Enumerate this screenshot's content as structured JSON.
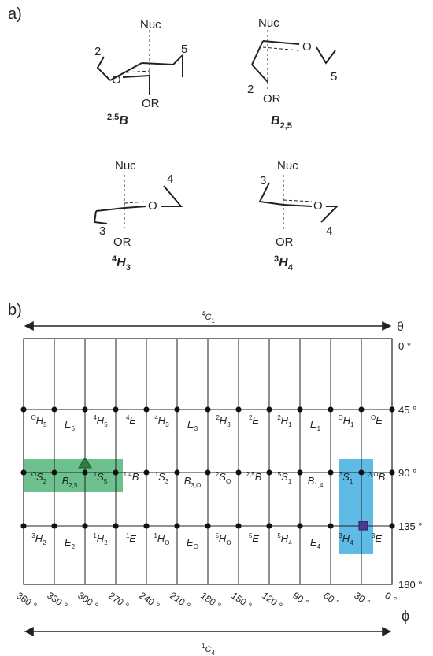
{
  "panel_a": {
    "label": "a)",
    "structures": [
      {
        "id": "25B",
        "sup": "2,5",
        "letter": "B",
        "sub": "",
        "atoms": {
          "top": "Nuc",
          "bottom": "OR",
          "c_left": "2",
          "c_right": "5",
          "ring_o": "O"
        }
      },
      {
        "id": "B25",
        "sup": "",
        "letter": "B",
        "sub": "2,5",
        "atoms": {
          "top": "Nuc",
          "bottom": "OR",
          "c_left": "2",
          "c_right": "5",
          "ring_o": "O"
        }
      },
      {
        "id": "4H3",
        "sup": "4",
        "letter": "H",
        "sub": "3",
        "atoms": {
          "top": "Nuc",
          "bottom": "OR",
          "c_left": "3",
          "c_right": "4",
          "ring_o": "O"
        }
      },
      {
        "id": "3H4",
        "sup": "3",
        "letter": "H",
        "sub": "4",
        "atoms": {
          "top": "Nuc",
          "bottom": "OR",
          "c_left": "3",
          "c_right": "4",
          "ring_o": "O"
        }
      }
    ]
  },
  "panel_b": {
    "label": "b)",
    "top_arrow_label": {
      "sup": "4",
      "main": "C",
      "sub": "1"
    },
    "bottom_arrow_label": {
      "sup": "1",
      "main": "C",
      "sub": "4"
    },
    "theta_symbol": "θ",
    "phi_symbol": "ϕ",
    "theta_ticks": [
      "0 °",
      "45 °",
      "90 °",
      "135 °",
      "180 °"
    ],
    "phi_ticks": [
      "360 °",
      "330 °",
      "300 °",
      "270 °",
      "240 °",
      "210 °",
      "180 °",
      "150 °",
      "120 °",
      "90 °",
      "60 °",
      "30 °",
      "0 °"
    ],
    "rows": [
      [
        {
          "sup": "O",
          "main": "H",
          "sub": "5"
        },
        {
          "sup": "",
          "main": "E",
          "sub": "5"
        },
        {
          "sup": "4",
          "main": "H",
          "sub": "5"
        },
        {
          "sup": "4",
          "main": "E",
          "sub": ""
        },
        {
          "sup": "4",
          "main": "H",
          "sub": "3"
        },
        {
          "sup": "",
          "main": "E",
          "sub": "3"
        },
        {
          "sup": "2",
          "main": "H",
          "sub": "3"
        },
        {
          "sup": "2",
          "main": "E",
          "sub": ""
        },
        {
          "sup": "2",
          "main": "H",
          "sub": "1"
        },
        {
          "sup": "",
          "main": "E",
          "sub": "1"
        },
        {
          "sup": "O",
          "main": "H",
          "sub": "1"
        },
        {
          "sup": "O",
          "main": "E",
          "sub": ""
        }
      ],
      [
        {
          "sup": "O",
          "main": "S",
          "sub": "2"
        },
        {
          "sup": "",
          "main": "B",
          "sub": "2,5"
        },
        {
          "sup": "1",
          "main": "S",
          "sub": "5"
        },
        {
          "sup": "1,4",
          "main": "B",
          "sub": ""
        },
        {
          "sup": "1",
          "main": "S",
          "sub": "3"
        },
        {
          "sup": "",
          "main": "B",
          "sub": "3,O"
        },
        {
          "sup": "2",
          "main": "S",
          "sub": "O"
        },
        {
          "sup": "2,5",
          "main": "B",
          "sub": ""
        },
        {
          "sup": "5",
          "main": "S",
          "sub": "1"
        },
        {
          "sup": "",
          "main": "B",
          "sub": "1,4"
        },
        {
          "sup": "3",
          "main": "S",
          "sub": "1"
        },
        {
          "sup": "3,O",
          "main": "B",
          "sub": ""
        }
      ],
      [
        {
          "sup": "3",
          "main": "H",
          "sub": "2"
        },
        {
          "sup": "",
          "main": "E",
          "sub": "2"
        },
        {
          "sup": "1",
          "main": "H",
          "sub": "2"
        },
        {
          "sup": "1",
          "main": "E",
          "sub": ""
        },
        {
          "sup": "1",
          "main": "H",
          "sub": "O"
        },
        {
          "sup": "",
          "main": "E",
          "sub": "O"
        },
        {
          "sup": "5",
          "main": "H",
          "sub": "O"
        },
        {
          "sup": "5",
          "main": "E",
          "sub": ""
        },
        {
          "sup": "5",
          "main": "H",
          "sub": "4"
        },
        {
          "sup": "",
          "main": "E",
          "sub": "4"
        },
        {
          "sup": "3",
          "main": "H",
          "sub": "4"
        },
        {
          "sup": "3",
          "main": "E",
          "sub": ""
        }
      ]
    ],
    "colors": {
      "green": "#6cc18f",
      "green_marker": "#2e7d3a",
      "blue": "#5dbbe6",
      "blue_marker": "#4b3a8c",
      "line": "#222222"
    }
  }
}
